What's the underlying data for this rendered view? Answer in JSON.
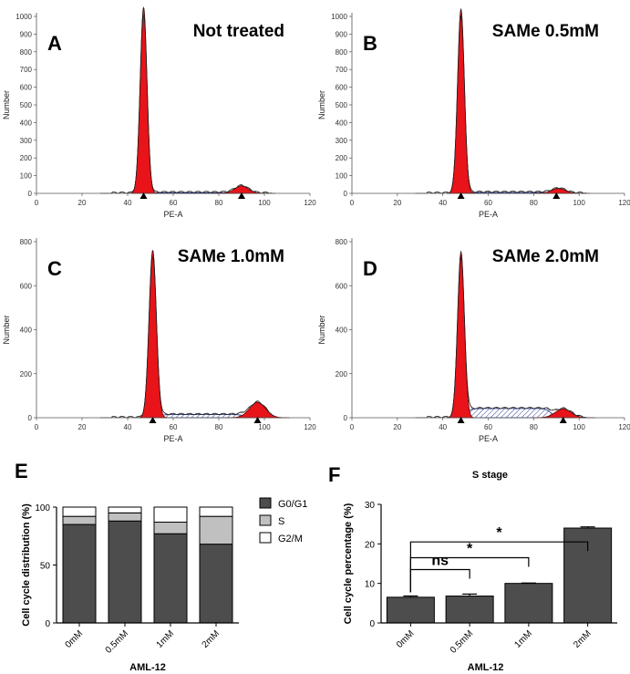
{
  "chart_data": [
    {
      "id": "A",
      "type": "area",
      "panel_label": "A",
      "title": "Not treated",
      "xlabel": "PE-A",
      "ylabel": "Number",
      "xlim": [
        0,
        120
      ],
      "ylim": [
        0,
        1000
      ],
      "xticks": [
        0,
        20,
        40,
        60,
        80,
        100,
        120
      ],
      "yticks": [
        0,
        100,
        200,
        300,
        400,
        500,
        600,
        700,
        800,
        900,
        1000
      ],
      "g1": {
        "mean": 47,
        "sd": 1.5,
        "height": 1050
      },
      "g2": {
        "mean": 90,
        "sd": 3.0,
        "height": 42
      },
      "s_level": 4,
      "markers": [
        47,
        90
      ]
    },
    {
      "id": "B",
      "type": "area",
      "panel_label": "B",
      "title": "SAMe 0.5mM",
      "xlabel": "PE-A",
      "ylabel": "Number",
      "xlim": [
        0,
        120
      ],
      "ylim": [
        0,
        1000
      ],
      "xticks": [
        0,
        20,
        40,
        60,
        80,
        100,
        120
      ],
      "yticks": [
        0,
        100,
        200,
        300,
        400,
        500,
        600,
        700,
        800,
        900,
        1000
      ],
      "g1": {
        "mean": 48,
        "sd": 1.5,
        "height": 1040
      },
      "g2": {
        "mean": 91,
        "sd": 3.0,
        "height": 28
      },
      "s_level": 5,
      "markers": [
        48,
        90
      ]
    },
    {
      "id": "C",
      "type": "area",
      "panel_label": "C",
      "title": "SAMe 1.0mM",
      "xlabel": "PE-A",
      "ylabel": "Number",
      "xlim": [
        0,
        120
      ],
      "ylim": [
        0,
        800
      ],
      "xticks": [
        0,
        20,
        40,
        60,
        80,
        100,
        120
      ],
      "yticks": [
        0,
        200,
        400,
        600,
        800
      ],
      "g1": {
        "mean": 51,
        "sd": 1.6,
        "height": 760
      },
      "g2": {
        "mean": 97,
        "sd": 3.5,
        "height": 70
      },
      "s_level": 14,
      "markers": [
        51,
        97
      ]
    },
    {
      "id": "D",
      "type": "area",
      "panel_label": "D",
      "title": "SAMe 2.0mM",
      "xlabel": "PE-A",
      "ylabel": "Number",
      "xlim": [
        0,
        120
      ],
      "ylim": [
        0,
        800
      ],
      "xticks": [
        0,
        20,
        40,
        60,
        80,
        100,
        120
      ],
      "yticks": [
        0,
        200,
        400,
        600,
        800
      ],
      "g1": {
        "mean": 48,
        "sd": 1.5,
        "height": 750
      },
      "g2": {
        "mean": 93,
        "sd": 3.5,
        "height": 40
      },
      "s_level": 42,
      "markers": [
        48,
        93
      ]
    },
    {
      "id": "E",
      "type": "bar",
      "panel_label": "E",
      "stacked": true,
      "ylabel": "Cell cycle distribution (%)",
      "xlabel": "AML-12",
      "categories": [
        "0mM",
        "0.5mM",
        "1mM",
        "2mM"
      ],
      "ylim": [
        0,
        100
      ],
      "yticks": [
        0,
        50,
        100
      ],
      "legend_position": "top-right",
      "series": [
        {
          "name": "G0/G1",
          "color": "#4d4d4d",
          "values": [
            85,
            88,
            77,
            68
          ]
        },
        {
          "name": "S",
          "color": "#c0c0c0",
          "values": [
            7,
            7,
            10,
            24
          ]
        },
        {
          "name": "G2/M",
          "color": "#ffffff",
          "values": [
            8,
            5,
            13,
            8
          ]
        }
      ]
    },
    {
      "id": "F",
      "type": "bar",
      "panel_label": "F",
      "title": "S stage",
      "ylabel": "Cell cycle percentage (%)",
      "xlabel": "AML-12",
      "categories": [
        "0mM",
        "0.5mM",
        "1mM",
        "2mM"
      ],
      "values": [
        6.5,
        6.8,
        10.0,
        24.0
      ],
      "errors": [
        0.3,
        0.5,
        0.1,
        0.3
      ],
      "color": "#4d4d4d",
      "ylim": [
        0,
        30
      ],
      "yticks": [
        0,
        10,
        20,
        30
      ],
      "comparisons": [
        {
          "from": 0,
          "to": 1,
          "label": "ns"
        },
        {
          "from": 0,
          "to": 2,
          "label": "*"
        },
        {
          "from": 0,
          "to": 3,
          "label": "*"
        }
      ]
    }
  ]
}
